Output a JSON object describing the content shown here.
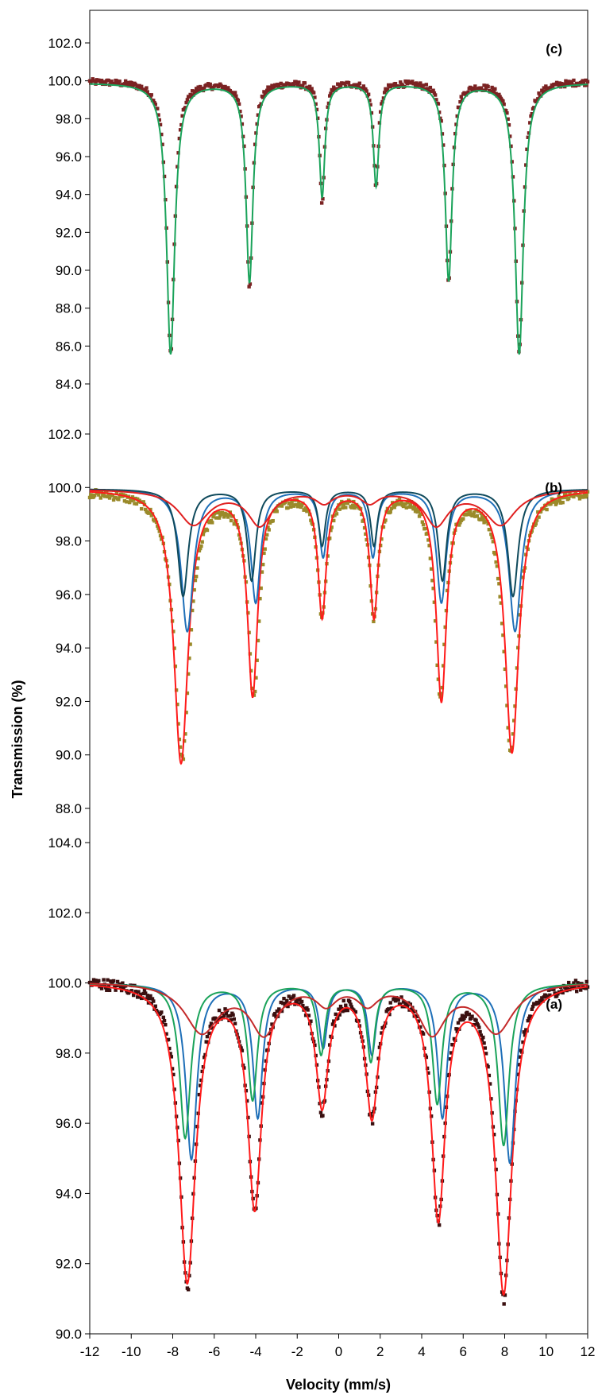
{
  "chart_data": [
    {
      "type": "line",
      "panel": "(c)",
      "xlim": [
        -12,
        12
      ],
      "ylim": [
        84,
        103
      ],
      "yticks": [
        "102.0",
        "100.0",
        "98.0",
        "96.0",
        "94.0",
        "92.0",
        "90.0",
        "88.0",
        "86.0",
        "84.0"
      ],
      "ytick_values": [
        102,
        100,
        98,
        96,
        94,
        92,
        90,
        88,
        86,
        84
      ],
      "series": [
        {
          "kind": "scatter",
          "color": "#7b2323",
          "baseline": 100.0,
          "lines": [
            {
              "center": -8.1,
              "depth": 14.4,
              "hw": 0.22
            },
            {
              "center": -4.3,
              "depth": 10.8,
              "hw": 0.18
            },
            {
              "center": -0.8,
              "depth": 6.5,
              "hw": 0.14
            },
            {
              "center": 1.8,
              "depth": 5.6,
              "hw": 0.14
            },
            {
              "center": 5.3,
              "depth": 10.6,
              "hw": 0.18
            },
            {
              "center": 8.7,
              "depth": 14.4,
              "hw": 0.22
            }
          ]
        },
        {
          "kind": "line",
          "color": "#1aa35a",
          "baseline": 99.9,
          "lines": [
            {
              "center": -8.1,
              "depth": 14.3,
              "hw": 0.24
            },
            {
              "center": -4.3,
              "depth": 10.5,
              "hw": 0.2
            },
            {
              "center": -0.8,
              "depth": 6.0,
              "hw": 0.16
            },
            {
              "center": 1.8,
              "depth": 5.4,
              "hw": 0.16
            },
            {
              "center": 5.3,
              "depth": 10.4,
              "hw": 0.2
            },
            {
              "center": 8.7,
              "depth": 14.3,
              "hw": 0.24
            }
          ]
        }
      ]
    },
    {
      "type": "line",
      "panel": "(b)",
      "xlim": [
        -12,
        12
      ],
      "ylim": [
        87.5,
        103.5
      ],
      "yticks": [
        "102.0",
        "100.0",
        "98.0",
        "96.0",
        "94.0",
        "92.0",
        "90.0",
        "88.0"
      ],
      "ytick_values": [
        102,
        100,
        98,
        96,
        94,
        92,
        90,
        88
      ],
      "series": [
        {
          "kind": "scatter",
          "color": "#9a8a2a",
          "baseline": 99.9,
          "lines": [
            {
              "center": -7.55,
              "depth": 10.0,
              "hw": 0.45
            },
            {
              "center": -4.1,
              "depth": 7.6,
              "hw": 0.32
            },
            {
              "center": -0.8,
              "depth": 4.6,
              "hw": 0.25
            },
            {
              "center": 1.7,
              "depth": 4.6,
              "hw": 0.25
            },
            {
              "center": 4.9,
              "depth": 7.6,
              "hw": 0.32
            },
            {
              "center": 8.3,
              "depth": 9.7,
              "hw": 0.42
            }
          ]
        },
        {
          "kind": "line",
          "color": "#ff1a1a",
          "baseline": 99.95,
          "lines": [
            {
              "center": -7.6,
              "depth": 10.2,
              "hw": 0.42
            },
            {
              "center": -4.15,
              "depth": 7.6,
              "hw": 0.3
            },
            {
              "center": -0.8,
              "depth": 4.7,
              "hw": 0.24
            },
            {
              "center": 1.7,
              "depth": 4.7,
              "hw": 0.24
            },
            {
              "center": 4.95,
              "depth": 7.8,
              "hw": 0.3
            },
            {
              "center": 8.35,
              "depth": 9.8,
              "hw": 0.4
            }
          ]
        },
        {
          "kind": "line",
          "color": "#1e6fb8",
          "baseline": 99.95,
          "lines": [
            {
              "center": -7.3,
              "depth": 5.3,
              "hw": 0.35
            },
            {
              "center": -4.0,
              "depth": 4.2,
              "hw": 0.28
            },
            {
              "center": -0.75,
              "depth": 2.5,
              "hw": 0.22
            },
            {
              "center": 1.65,
              "depth": 2.5,
              "hw": 0.22
            },
            {
              "center": 4.95,
              "depth": 4.2,
              "hw": 0.28
            },
            {
              "center": 8.5,
              "depth": 5.3,
              "hw": 0.35
            }
          ]
        },
        {
          "kind": "line",
          "color": "#0f4a5c",
          "baseline": 99.95,
          "lines": [
            {
              "center": -7.5,
              "depth": 4.0,
              "hw": 0.3
            },
            {
              "center": -4.2,
              "depth": 3.4,
              "hw": 0.25
            },
            {
              "center": -0.8,
              "depth": 2.1,
              "hw": 0.2
            },
            {
              "center": 1.7,
              "depth": 2.1,
              "hw": 0.2
            },
            {
              "center": 5.0,
              "depth": 3.4,
              "hw": 0.25
            },
            {
              "center": 8.4,
              "depth": 4.0,
              "hw": 0.3
            }
          ]
        },
        {
          "kind": "line",
          "color": "#e02020",
          "baseline": 99.95,
          "lines": [
            {
              "center": -7.0,
              "depth": 1.3,
              "hw": 0.9
            },
            {
              "center": -3.8,
              "depth": 1.3,
              "hw": 0.7
            },
            {
              "center": -0.7,
              "depth": 0.45,
              "hw": 0.5
            },
            {
              "center": 1.5,
              "depth": 0.45,
              "hw": 0.5
            },
            {
              "center": 4.7,
              "depth": 1.3,
              "hw": 0.7
            },
            {
              "center": 7.8,
              "depth": 1.3,
              "hw": 0.9
            }
          ]
        }
      ]
    },
    {
      "type": "line",
      "panel": "(a)",
      "xlim": [
        -12,
        12
      ],
      "ylim": [
        90,
        104
      ],
      "yticks": [
        "104.0",
        "102.0",
        "100.0",
        "98.0",
        "96.0",
        "94.0",
        "92.0",
        "90.0"
      ],
      "ytick_values": [
        104,
        102,
        100,
        98,
        96,
        94,
        92,
        90
      ],
      "xticks": [
        "-12",
        "-10",
        "-8",
        "-6",
        "-4",
        "-2",
        "0",
        "2",
        "4",
        "6",
        "8",
        "10",
        "12"
      ],
      "xtick_values": [
        -12,
        -10,
        -8,
        -6,
        -4,
        -2,
        0,
        2,
        4,
        6,
        8,
        10,
        12
      ],
      "xlabel": "Velocity (mm/s)",
      "series": [
        {
          "kind": "scatter",
          "color": "#3a1010",
          "baseline": 100.1,
          "lines": [
            {
              "center": -7.3,
              "depth": 8.7,
              "hw": 0.45
            },
            {
              "center": -4.05,
              "depth": 6.4,
              "hw": 0.38
            },
            {
              "center": -0.8,
              "depth": 3.5,
              "hw": 0.35
            },
            {
              "center": 1.6,
              "depth": 3.8,
              "hw": 0.35
            },
            {
              "center": 4.8,
              "depth": 6.7,
              "hw": 0.38
            },
            {
              "center": 7.95,
              "depth": 9.0,
              "hw": 0.45
            }
          ]
        },
        {
          "kind": "line",
          "color": "#ff1a1a",
          "baseline": 100.05,
          "lines": [
            {
              "center": -7.3,
              "depth": 8.5,
              "hw": 0.48
            },
            {
              "center": -4.05,
              "depth": 6.3,
              "hw": 0.4
            },
            {
              "center": -0.8,
              "depth": 3.4,
              "hw": 0.36
            },
            {
              "center": 1.6,
              "depth": 3.7,
              "hw": 0.36
            },
            {
              "center": 4.8,
              "depth": 6.6,
              "hw": 0.4
            },
            {
              "center": 7.95,
              "depth": 8.8,
              "hw": 0.48
            }
          ]
        },
        {
          "kind": "line",
          "color": "#1e6fb8",
          "baseline": 100.0,
          "lines": [
            {
              "center": -7.1,
              "depth": 5.0,
              "hw": 0.32
            },
            {
              "center": -3.9,
              "depth": 3.8,
              "hw": 0.28
            },
            {
              "center": -0.75,
              "depth": 1.8,
              "hw": 0.24
            },
            {
              "center": 1.6,
              "depth": 2.0,
              "hw": 0.24
            },
            {
              "center": 5.0,
              "depth": 3.8,
              "hw": 0.28
            },
            {
              "center": 8.25,
              "depth": 5.1,
              "hw": 0.32
            }
          ]
        },
        {
          "kind": "line",
          "color": "#1aa35a",
          "baseline": 100.0,
          "lines": [
            {
              "center": -7.4,
              "depth": 4.4,
              "hw": 0.32
            },
            {
              "center": -4.15,
              "depth": 3.3,
              "hw": 0.28
            },
            {
              "center": -0.85,
              "depth": 2.0,
              "hw": 0.24
            },
            {
              "center": 1.55,
              "depth": 2.2,
              "hw": 0.24
            },
            {
              "center": 4.75,
              "depth": 3.4,
              "hw": 0.28
            },
            {
              "center": 7.95,
              "depth": 4.6,
              "hw": 0.32
            }
          ]
        },
        {
          "kind": "line",
          "color": "#c42a2a",
          "baseline": 100.05,
          "lines": [
            {
              "center": -6.6,
              "depth": 1.4,
              "hw": 1.0
            },
            {
              "center": -3.6,
              "depth": 1.4,
              "hw": 0.8
            },
            {
              "center": -0.6,
              "depth": 0.55,
              "hw": 0.6
            },
            {
              "center": 1.4,
              "depth": 0.55,
              "hw": 0.6
            },
            {
              "center": 4.5,
              "depth": 1.4,
              "hw": 0.8
            },
            {
              "center": 7.6,
              "depth": 1.4,
              "hw": 1.0
            }
          ]
        }
      ]
    }
  ],
  "labels": {
    "panel_c": "(c)",
    "panel_b": "(b)",
    "panel_a": "(a)",
    "ylabel": "Transmission (%)",
    "xlabel": "Velocity (mm/s)"
  }
}
